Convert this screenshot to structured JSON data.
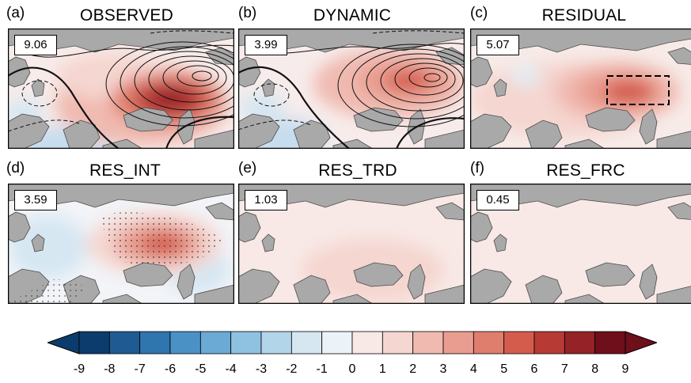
{
  "panels": [
    {
      "letter": "(a)",
      "title": "OBSERVED",
      "value": "9.06"
    },
    {
      "letter": "(b)",
      "title": "DYNAMIC",
      "value": "3.99"
    },
    {
      "letter": "(c)",
      "title": "RESIDUAL",
      "value": "5.07"
    },
    {
      "letter": "(d)",
      "title": "RES_INT",
      "value": "3.59"
    },
    {
      "letter": "(e)",
      "title": "RES_TRD",
      "value": "1.03"
    },
    {
      "letter": "(f)",
      "title": "RES_FRC",
      "value": "0.45"
    }
  ],
  "colorbar": {
    "ticks": [
      "-9",
      "-8",
      "-7",
      "-6",
      "-5",
      "-4",
      "-3",
      "-2",
      "-1",
      "0",
      "1",
      "2",
      "3",
      "4",
      "5",
      "6",
      "7",
      "8",
      "9"
    ],
    "colors": [
      "#0b3c6d",
      "#1f5a93",
      "#2f75ae",
      "#4a92c5",
      "#6aaad4",
      "#8fc1e1",
      "#b3d5ea",
      "#d6e7f2",
      "#ecf3f8",
      "#f8e9e6",
      "#f5d6d0",
      "#f0bab0",
      "#e99d90",
      "#e07e6d",
      "#d45c4c",
      "#b83a35",
      "#952226",
      "#6f0f1b"
    ]
  },
  "colors": {
    "land": "#a9a9a9",
    "coast": "#4a4a4a"
  }
}
